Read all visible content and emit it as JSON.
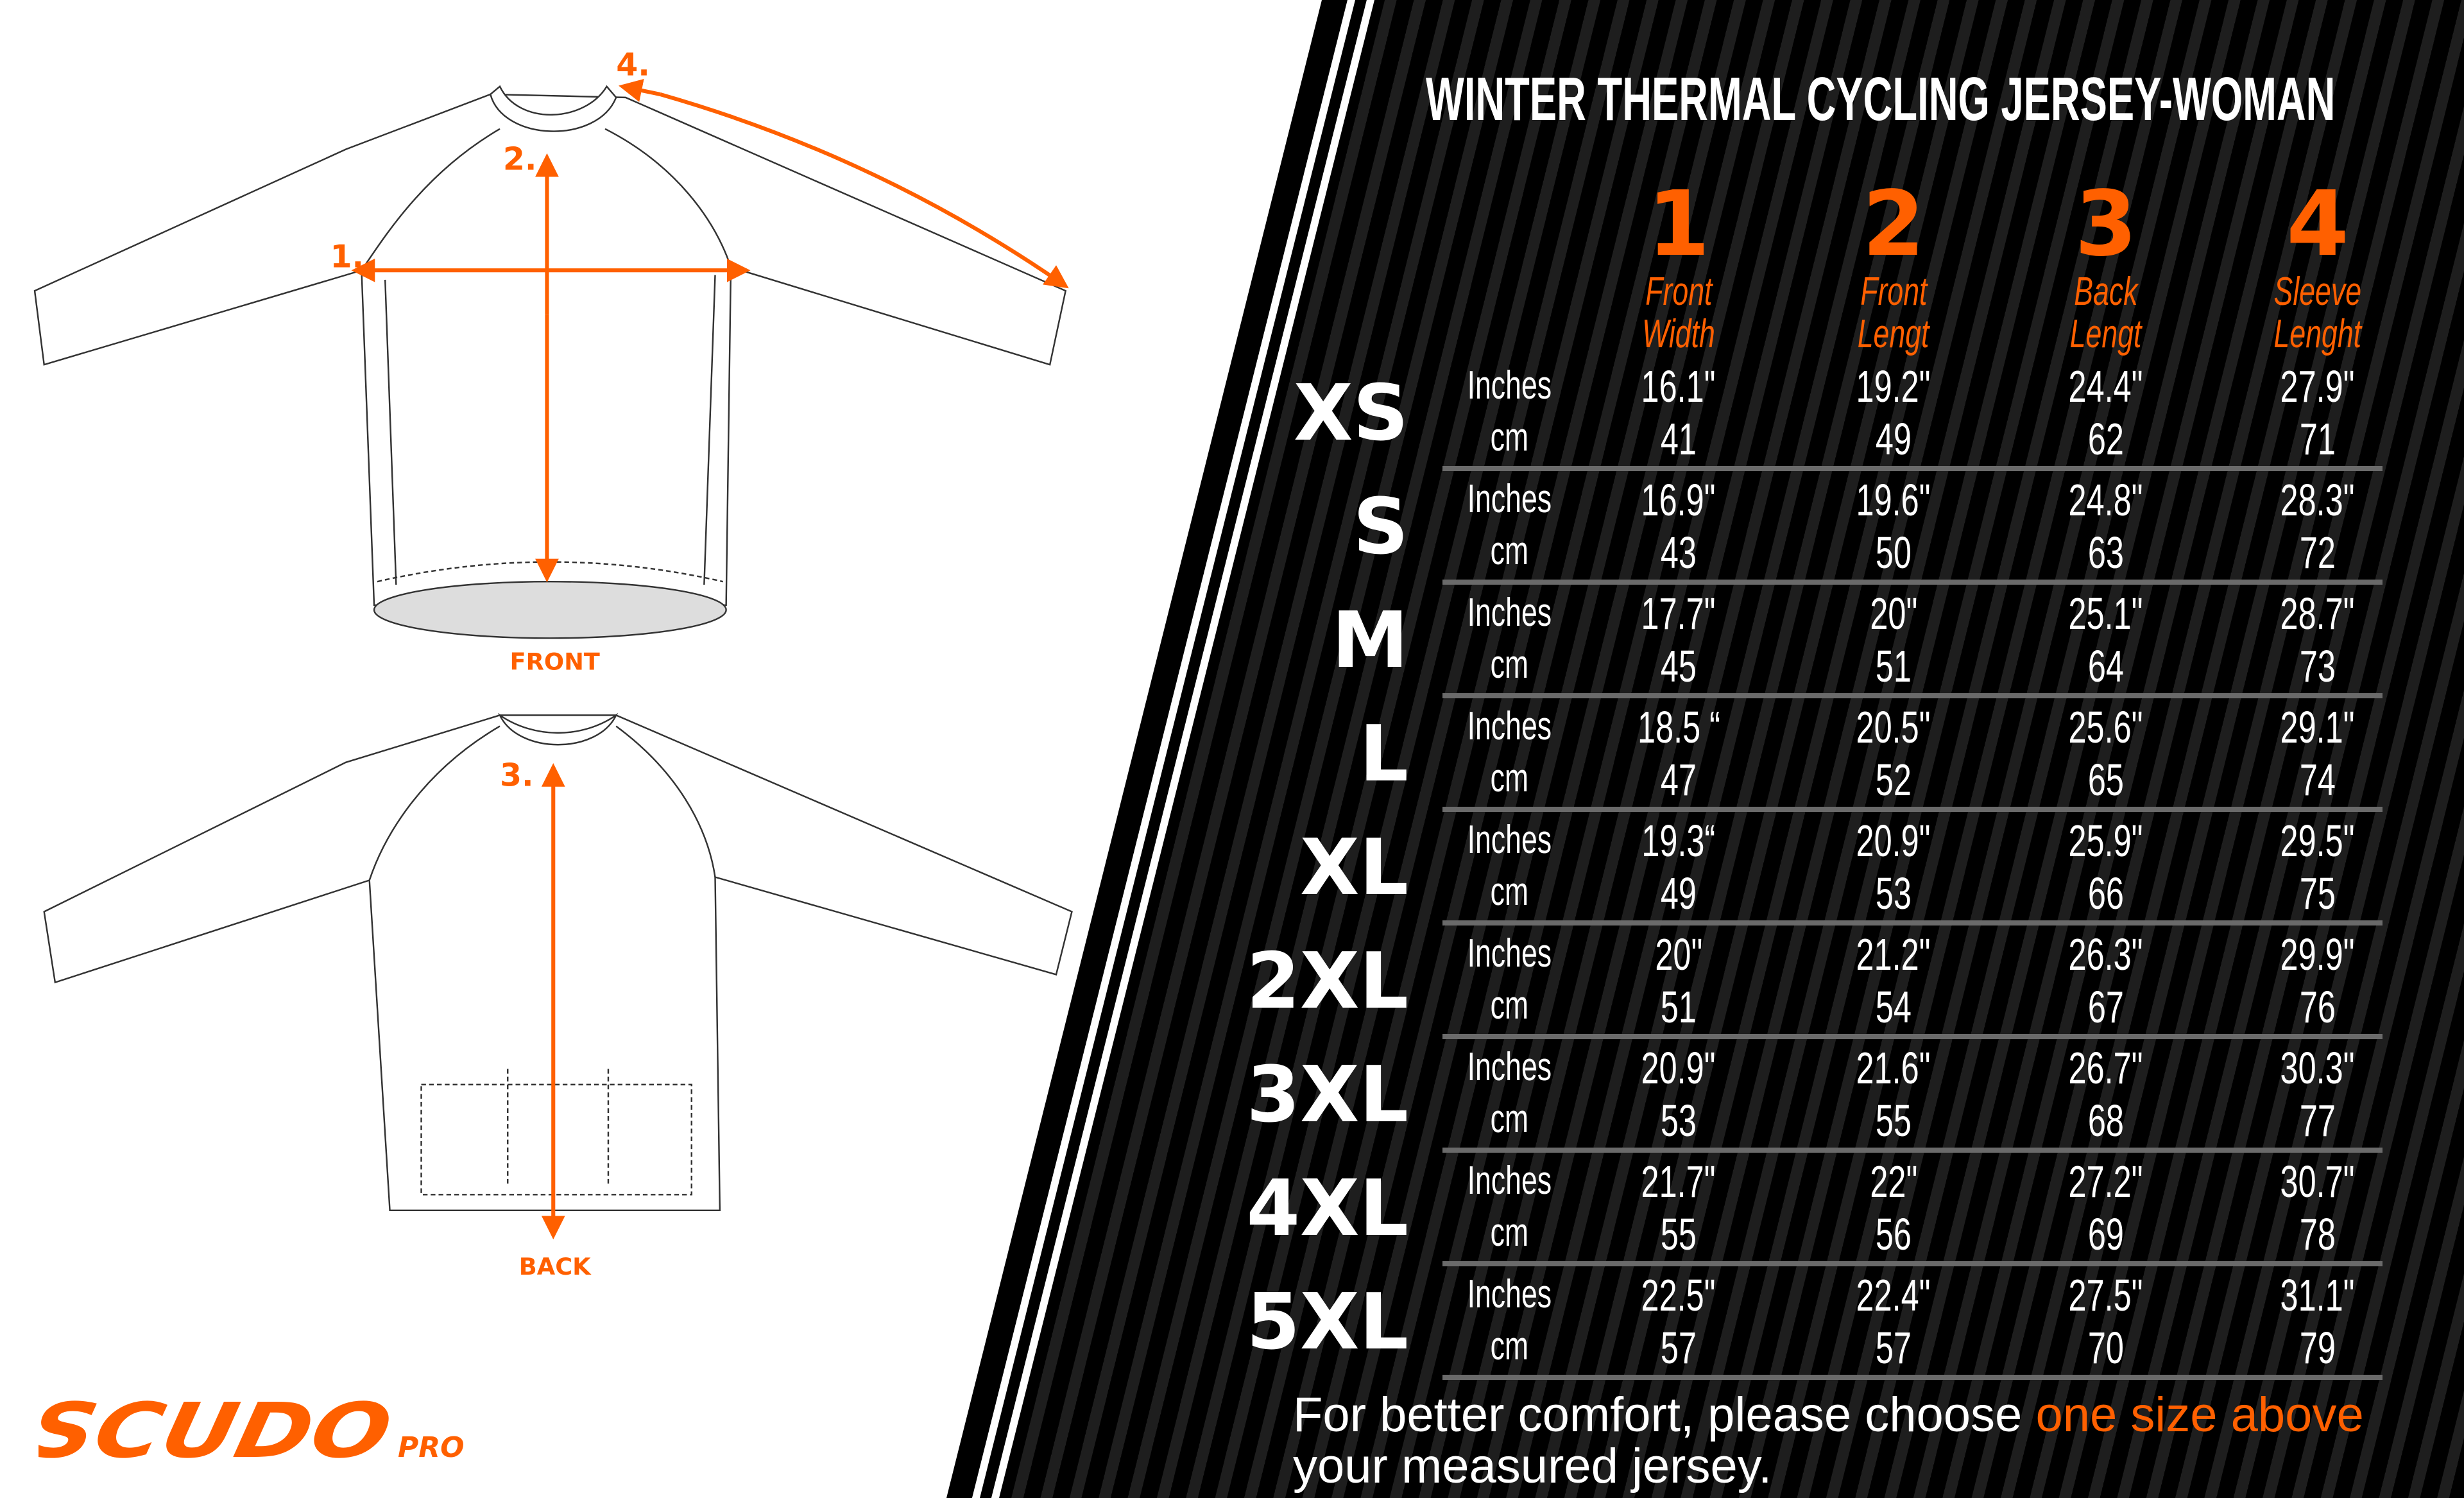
{
  "title": "WINTER  THERMAL CYCLING JERSEY-WOMAN",
  "brand": {
    "logo_text": "SCUDO",
    "logo_sub": "PRO",
    "color": "#ff6000"
  },
  "diagram": {
    "front_label": "FRONT",
    "back_label": "BACK",
    "markers": [
      "1.",
      "2.",
      "3.",
      "4."
    ]
  },
  "columns": [
    {
      "number": "1",
      "label_line1": "Front",
      "label_line2": "Width"
    },
    {
      "number": "2",
      "label_line1": "Front",
      "label_line2": "Lengt"
    },
    {
      "number": "3",
      "label_line1": "Back",
      "label_line2": "Lengt"
    },
    {
      "number": "4",
      "label_line1": "Sleeve",
      "label_line2": "Lenght"
    }
  ],
  "unit_labels": {
    "inches": "Inches",
    "cm": "cm"
  },
  "rows": [
    {
      "size": "XS",
      "inches": [
        "16.1\"",
        "19.2\"",
        "24.4\"",
        "27.9\""
      ],
      "cm": [
        "41",
        "49",
        "62",
        "71"
      ]
    },
    {
      "size": "S",
      "inches": [
        "16.9\"",
        "19.6\"",
        "24.8\"",
        "28.3\""
      ],
      "cm": [
        "43",
        "50",
        "63",
        "72"
      ]
    },
    {
      "size": "M",
      "inches": [
        "17.7\"",
        "20\"",
        "25.1\"",
        "28.7\""
      ],
      "cm": [
        "45",
        "51",
        "64",
        "73"
      ]
    },
    {
      "size": "L",
      "inches": [
        "18.5 “",
        "20.5\"",
        "25.6\"",
        "29.1\""
      ],
      "cm": [
        "47",
        "52",
        "65",
        "74"
      ]
    },
    {
      "size": "XL",
      "inches": [
        "19.3“",
        "20.9\"",
        "25.9\"",
        "29.5\""
      ],
      "cm": [
        "49",
        "53",
        "66",
        "75"
      ]
    },
    {
      "size": "2XL",
      "inches": [
        "20\"",
        "21.2\"",
        "26.3\"",
        "29.9\""
      ],
      "cm": [
        "51",
        "54",
        "67",
        "76"
      ]
    },
    {
      "size": "3XL",
      "inches": [
        "20.9\"",
        "21.6\"",
        "26.7\"",
        "30.3\""
      ],
      "cm": [
        "53",
        "55",
        "68",
        "77"
      ]
    },
    {
      "size": "4XL",
      "inches": [
        "21.7\"",
        "22\"",
        "27.2\"",
        "30.7\""
      ],
      "cm": [
        "55",
        "56",
        "69",
        "78"
      ]
    },
    {
      "size": "5XL",
      "inches": [
        "22.5\"",
        "22.4\"",
        "27.5\"",
        "31.1\""
      ],
      "cm": [
        "57",
        "57",
        "70",
        "79"
      ]
    }
  ],
  "footer": {
    "text_before": "For better comfort, please choose ",
    "highlight": "one size above",
    "text_after": "your measured jersey."
  }
}
